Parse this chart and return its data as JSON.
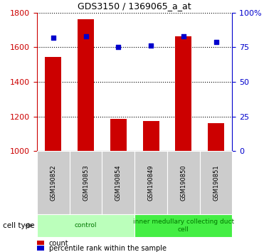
{
  "title": "GDS3150 / 1369065_a_at",
  "samples": [
    "GSM190852",
    "GSM190853",
    "GSM190854",
    "GSM190849",
    "GSM190850",
    "GSM190851"
  ],
  "counts": [
    1543,
    1760,
    1185,
    1175,
    1665,
    1160
  ],
  "percentile_ranks": [
    82,
    83,
    75,
    76,
    83,
    79
  ],
  "ylim_left": [
    1000,
    1800
  ],
  "ylim_right": [
    0,
    100
  ],
  "yticks_left": [
    1000,
    1200,
    1400,
    1600,
    1800
  ],
  "yticks_right": [
    0,
    25,
    50,
    75,
    100
  ],
  "bar_color": "#cc0000",
  "dot_color": "#0000cc",
  "bar_width": 0.5,
  "groups": [
    {
      "label": "control",
      "indices": [
        0,
        1,
        2
      ],
      "color": "#bbffbb"
    },
    {
      "label": "inner medullary collecting duct\ncell",
      "indices": [
        3,
        4,
        5
      ],
      "color": "#44ee44"
    }
  ],
  "legend_count_label": "count",
  "legend_percentile_label": "percentile rank within the sample",
  "cell_type_label": "cell type",
  "axis_color_left": "#cc0000",
  "axis_color_right": "#0000cc",
  "plot_bg": "#ffffff",
  "sample_box_color": "#cccccc",
  "grid_yticks": [
    1200,
    1400,
    1600,
    1800
  ]
}
